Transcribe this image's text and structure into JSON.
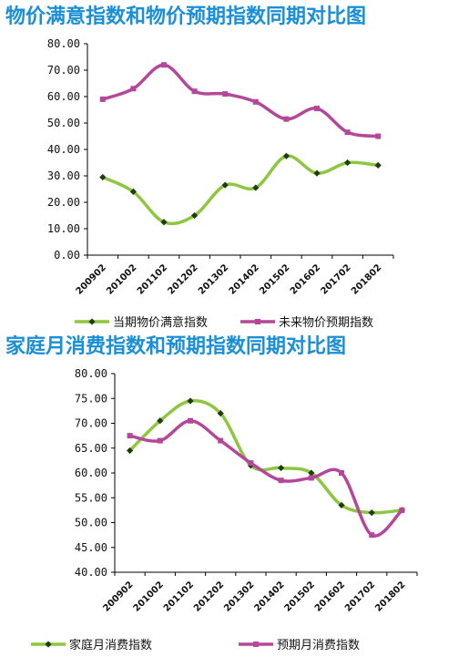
{
  "chart_data": [
    {
      "type": "line",
      "title": "物价满意指数和物价预期指数同期对比图",
      "ylim": [
        0,
        80
      ],
      "y_ticks": [
        "0.00",
        "10.00",
        "20.00",
        "30.00",
        "40.00",
        "50.00",
        "60.00",
        "70.00",
        "80.00"
      ],
      "categories": [
        "200902",
        "201002",
        "201102",
        "201202",
        "201302",
        "201402",
        "201502",
        "201602",
        "201702",
        "201802"
      ],
      "series": [
        {
          "name": "当期物价满意指数",
          "color": "#8dc63f",
          "marker_color": "#1f3d0c",
          "values": [
            29.5,
            24,
            12.5,
            15,
            26.5,
            25.5,
            37.5,
            31,
            35,
            34
          ]
        },
        {
          "name": "未来物价预期指数",
          "color": "#b5479a",
          "marker_color": "#b5479a",
          "values": [
            59,
            63,
            72,
            62,
            61,
            58,
            51.5,
            55.5,
            46.5,
            45
          ]
        }
      ],
      "legend": "bottom"
    },
    {
      "type": "line",
      "title": "家庭月消费指数和预期指数同期对比图",
      "ylim": [
        40,
        80
      ],
      "y_ticks": [
        "40.00",
        "45.00",
        "50.00",
        "55.00",
        "60.00",
        "65.00",
        "70.00",
        "75.00",
        "80.00"
      ],
      "categories": [
        "200902",
        "201002",
        "201102",
        "201202",
        "201302",
        "201402",
        "201502",
        "201602",
        "201702",
        "201802"
      ],
      "series": [
        {
          "name": "家庭月消费指数",
          "color": "#8dc63f",
          "marker_color": "#1f3d0c",
          "values": [
            64.5,
            70.5,
            74.5,
            72,
            61.5,
            61,
            60,
            53.5,
            52,
            52.5
          ]
        },
        {
          "name": "预期月消费指数",
          "color": "#b5479a",
          "marker_color": "#b5479a",
          "values": [
            67.5,
            66.5,
            70.5,
            66.5,
            62,
            58.5,
            59,
            60,
            47.5,
            52.5
          ]
        }
      ],
      "legend": "bottom"
    }
  ]
}
